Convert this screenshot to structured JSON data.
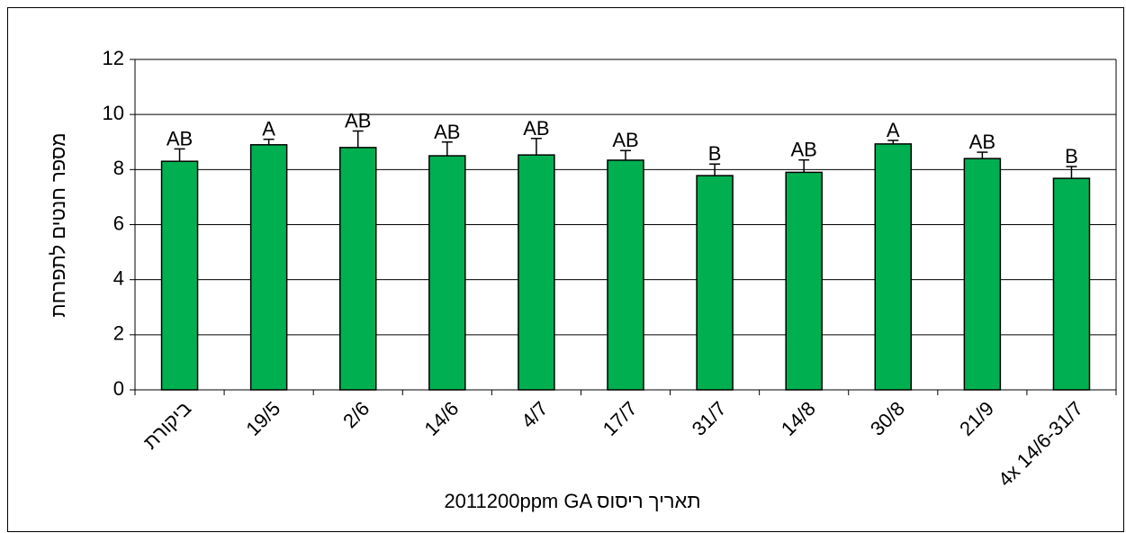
{
  "chart_data": {
    "type": "bar",
    "y_label": "מספר חנטים לתפרחת",
    "x_label": "2011200ppm  GA  תאריך ריסוס",
    "categories": [
      "ביקורת",
      "19/5",
      "2/6",
      "14/6",
      "4/7",
      "17/7",
      "31/7",
      "14/8",
      "30/8",
      "21/9",
      "4x 14/6-31/7"
    ],
    "values": [
      8.3,
      8.9,
      8.8,
      8.5,
      8.53,
      8.34,
      7.78,
      7.9,
      8.93,
      8.4,
      7.68
    ],
    "errors": [
      0.45,
      0.2,
      0.6,
      0.5,
      0.6,
      0.35,
      0.42,
      0.45,
      0.13,
      0.23,
      0.43
    ],
    "annotations": [
      "AB",
      "A",
      "AB",
      "AB",
      "AB",
      "AB",
      "B",
      "AB",
      "A",
      "AB",
      "B"
    ],
    "color": "#00b050",
    "ylim": [
      0,
      12
    ],
    "yticks": [
      0,
      2,
      4,
      6,
      8,
      10,
      12
    ],
    "grid": true
  }
}
